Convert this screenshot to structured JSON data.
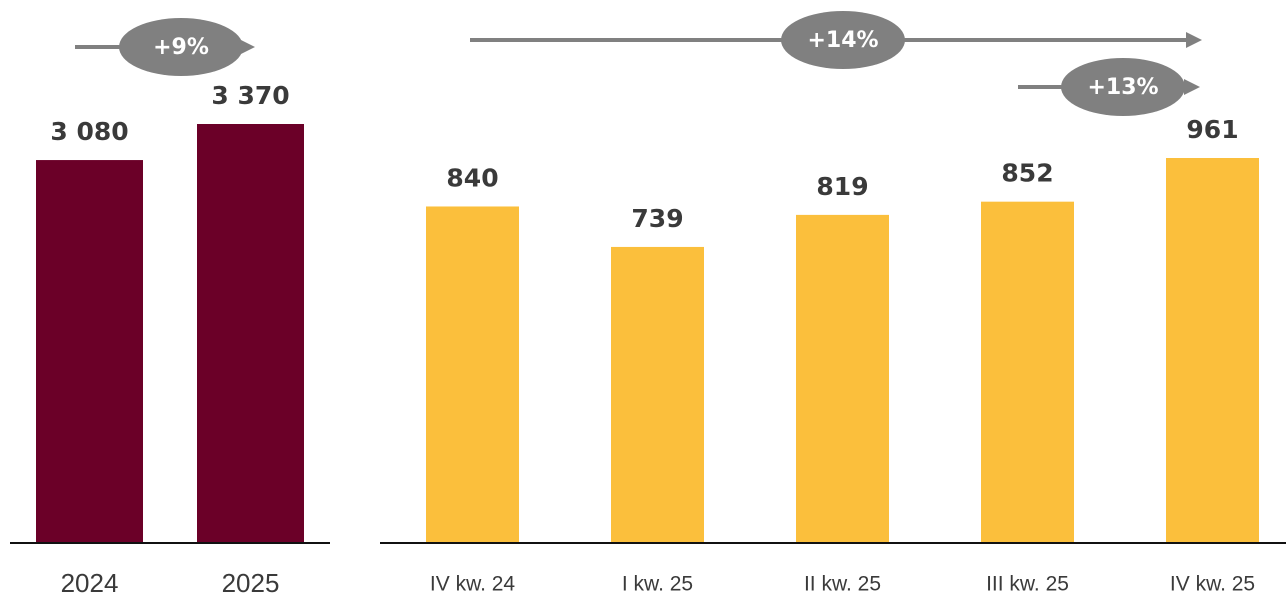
{
  "chart_data": [
    {
      "type": "bar",
      "categories": [
        "2024",
        "2025"
      ],
      "values": [
        3080,
        3370
      ],
      "value_labels": [
        "3 080",
        "3 370"
      ],
      "color": "#6b0028",
      "annotations": [
        "+9%"
      ]
    },
    {
      "type": "bar",
      "categories": [
        "IV kw. 24",
        "I kw. 25",
        "II kw. 25",
        "III kw. 25",
        "IV kw. 25"
      ],
      "values": [
        840,
        739,
        819,
        852,
        961
      ],
      "value_labels": [
        "840",
        "739",
        "819",
        "852",
        "961"
      ],
      "color": "#fbbf3c",
      "annotations": [
        "+14%",
        "+13%"
      ]
    }
  ]
}
